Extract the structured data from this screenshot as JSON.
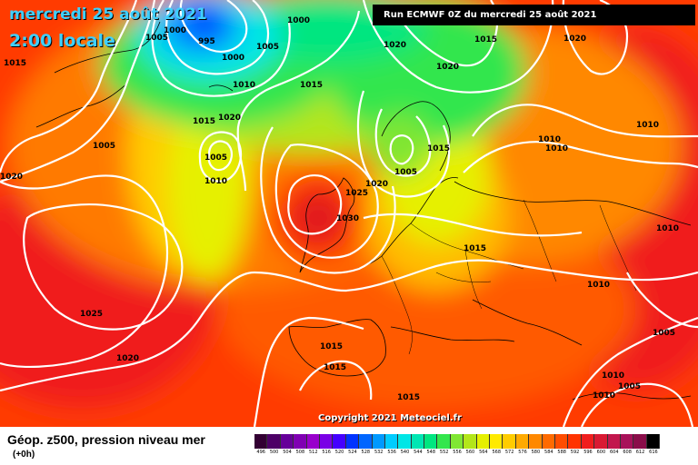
{
  "header": {
    "date_line": "mercredi 25 août 2021",
    "time_line": "2:00 locale",
    "run_info": "Run ECMWF 0Z du mercredi 25 août 2021"
  },
  "copyright": "Copyright 2021 Meteociel.fr",
  "legend": {
    "title": "Géop. z500, pression niveau mer",
    "subtitle": "(+0h)",
    "scale": [
      {
        "label": "496",
        "color": "#330033"
      },
      {
        "label": "500",
        "color": "#4d0066"
      },
      {
        "label": "504",
        "color": "#660099"
      },
      {
        "label": "508",
        "color": "#8000b3"
      },
      {
        "label": "512",
        "color": "#9900cc"
      },
      {
        "label": "516",
        "color": "#7a00e6"
      },
      {
        "label": "520",
        "color": "#4400ff"
      },
      {
        "label": "524",
        "color": "#0033ff"
      },
      {
        "label": "528",
        "color": "#0066ff"
      },
      {
        "label": "532",
        "color": "#0099ff"
      },
      {
        "label": "536",
        "color": "#00ccff"
      },
      {
        "label": "540",
        "color": "#00e6e6"
      },
      {
        "label": "544",
        "color": "#00e6b3"
      },
      {
        "label": "548",
        "color": "#00e680"
      },
      {
        "label": "552",
        "color": "#33e64d"
      },
      {
        "label": "556",
        "color": "#80e633"
      },
      {
        "label": "560",
        "color": "#b3e61a"
      },
      {
        "label": "564",
        "color": "#e6f000"
      },
      {
        "label": "568",
        "color": "#ffea00"
      },
      {
        "label": "572",
        "color": "#ffcc00"
      },
      {
        "label": "576",
        "color": "#ffaa00"
      },
      {
        "label": "580",
        "color": "#ff8800"
      },
      {
        "label": "584",
        "color": "#ff6a00"
      },
      {
        "label": "588",
        "color": "#ff4d00"
      },
      {
        "label": "592",
        "color": "#ff3300"
      },
      {
        "label": "596",
        "color": "#f01e1e"
      },
      {
        "label": "600",
        "color": "#d91a33"
      },
      {
        "label": "604",
        "color": "#c2164d"
      },
      {
        "label": "608",
        "color": "#a8125a"
      },
      {
        "label": "612",
        "color": "#8a0e4a"
      },
      {
        "label": "616",
        "color": "#000000"
      }
    ]
  },
  "pressure_labels": [
    {
      "text": "1005",
      "name": "label-1005-a"
    },
    {
      "text": "1000",
      "name": "label-1000-a"
    },
    {
      "text": "995",
      "name": "label-995"
    },
    {
      "text": "1000",
      "name": "label-1000-b"
    },
    {
      "text": "1005",
      "name": "label-1005-b"
    },
    {
      "text": "1015",
      "name": "label-1015-a"
    },
    {
      "text": "1000",
      "name": "label-1000-c"
    },
    {
      "text": "1010",
      "name": "label-1010-a"
    },
    {
      "text": "1015",
      "name": "label-1015-b"
    },
    {
      "text": "1020",
      "name": "label-1020-a"
    },
    {
      "text": "1015",
      "name": "label-1015-c"
    },
    {
      "text": "1005",
      "name": "label-1005-c"
    },
    {
      "text": "1005",
      "name": "label-1005-d"
    },
    {
      "text": "1010",
      "name": "label-1010-b"
    },
    {
      "text": "1020",
      "name": "label-1020-b"
    },
    {
      "text": "1020",
      "name": "label-1020-c"
    },
    {
      "text": "1020",
      "name": "label-1020-d"
    },
    {
      "text": "1015",
      "name": "label-1015-d"
    },
    {
      "text": "1020",
      "name": "label-1020-e"
    },
    {
      "text": "1010",
      "name": "label-1010-c"
    },
    {
      "text": "1010",
      "name": "label-1010-d"
    },
    {
      "text": "1010",
      "name": "label-1010-e"
    },
    {
      "text": "1015",
      "name": "label-1015-e"
    },
    {
      "text": "1005",
      "name": "label-1005-e"
    },
    {
      "text": "1025",
      "name": "label-1025-a"
    },
    {
      "text": "1020",
      "name": "label-1020-f"
    },
    {
      "text": "1030",
      "name": "label-1030"
    },
    {
      "text": "1015",
      "name": "label-1015-f"
    },
    {
      "text": "1010",
      "name": "label-1010-f"
    },
    {
      "text": "1010",
      "name": "label-1010-g"
    },
    {
      "text": "1025",
      "name": "label-1025-b"
    },
    {
      "text": "1020",
      "name": "label-1020-g"
    },
    {
      "text": "1015",
      "name": "label-1015-g"
    },
    {
      "text": "1015",
      "name": "label-1015-h"
    },
    {
      "text": "1015",
      "name": "label-1015-i"
    },
    {
      "text": "1005",
      "name": "label-1005-f"
    },
    {
      "text": "1010",
      "name": "label-1010-h"
    },
    {
      "text": "1005",
      "name": "label-1005-g"
    },
    {
      "text": "1010",
      "name": "label-1010-i"
    }
  ]
}
